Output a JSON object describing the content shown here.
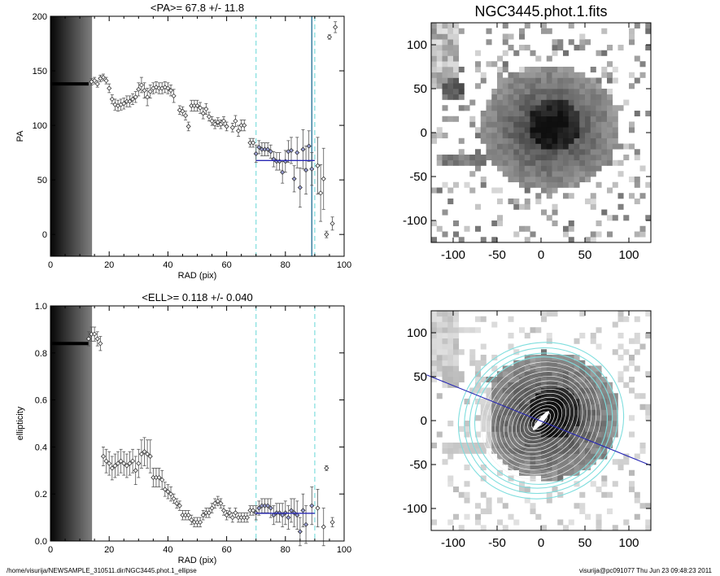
{
  "footer": {
    "path": "/home/visurija/NEWSAMPLE_310511.dir/NGC3445.phot.1_ellipse",
    "user_time": "visurija@pc091077  Thu Jun 23 09:48:23 2011"
  },
  "chart_data": [
    {
      "type": "scatter",
      "title": "<PA>=  67.8 +/-  11.8",
      "xlabel": "RAD (pix)",
      "ylabel": "PA",
      "xlim": [
        0,
        100
      ],
      "ylim": [
        -20,
        200
      ],
      "xticks": [
        0,
        20,
        40,
        60,
        80,
        100
      ],
      "yticks": [
        0,
        50,
        100,
        150,
        200
      ],
      "mean": 67.8,
      "mean_range": [
        70,
        90
      ],
      "vlines_dashed": [
        70,
        90
      ],
      "vline_solid": 89,
      "flat_segment": {
        "x": [
          0,
          13
        ],
        "y": 138
      },
      "points": [
        {
          "x": 14,
          "y": 140,
          "e": 3
        },
        {
          "x": 15,
          "y": 141,
          "e": 3
        },
        {
          "x": 16,
          "y": 138,
          "e": 3
        },
        {
          "x": 17,
          "y": 143,
          "e": 3
        },
        {
          "x": 18,
          "y": 144,
          "e": 3
        },
        {
          "x": 19,
          "y": 141,
          "e": 3
        },
        {
          "x": 20,
          "y": 134,
          "e": 4
        },
        {
          "x": 21,
          "y": 124,
          "e": 4
        },
        {
          "x": 22,
          "y": 119,
          "e": 5
        },
        {
          "x": 23,
          "y": 118,
          "e": 5
        },
        {
          "x": 24,
          "y": 119,
          "e": 5
        },
        {
          "x": 25,
          "y": 120,
          "e": 5
        },
        {
          "x": 26,
          "y": 122,
          "e": 5
        },
        {
          "x": 27,
          "y": 122,
          "e": 5
        },
        {
          "x": 28,
          "y": 124,
          "e": 5
        },
        {
          "x": 29,
          "y": 126,
          "e": 5
        },
        {
          "x": 30,
          "y": 133,
          "e": 6
        },
        {
          "x": 31,
          "y": 137,
          "e": 7
        },
        {
          "x": 32,
          "y": 132,
          "e": 7
        },
        {
          "x": 33,
          "y": 126,
          "e": 8
        },
        {
          "x": 34,
          "y": 131,
          "e": 6
        },
        {
          "x": 35,
          "y": 134,
          "e": 5
        },
        {
          "x": 36,
          "y": 135,
          "e": 5
        },
        {
          "x": 37,
          "y": 134,
          "e": 5
        },
        {
          "x": 38,
          "y": 134,
          "e": 5
        },
        {
          "x": 39,
          "y": 135,
          "e": 5
        },
        {
          "x": 40,
          "y": 134,
          "e": 5
        },
        {
          "x": 41,
          "y": 132,
          "e": 5
        },
        {
          "x": 42,
          "y": 127,
          "e": 6
        },
        {
          "x": 44,
          "y": 114,
          "e": 4
        },
        {
          "x": 45,
          "y": 113,
          "e": 4
        },
        {
          "x": 46,
          "y": 109,
          "e": 4
        },
        {
          "x": 47,
          "y": 99,
          "e": 4
        },
        {
          "x": 48,
          "y": 118,
          "e": 5
        },
        {
          "x": 49,
          "y": 118,
          "e": 5
        },
        {
          "x": 50,
          "y": 118,
          "e": 5
        },
        {
          "x": 51,
          "y": 116,
          "e": 5
        },
        {
          "x": 52,
          "y": 111,
          "e": 5
        },
        {
          "x": 53,
          "y": 115,
          "e": 5
        },
        {
          "x": 54,
          "y": 108,
          "e": 4
        },
        {
          "x": 55,
          "y": 104,
          "e": 4
        },
        {
          "x": 56,
          "y": 101,
          "e": 4
        },
        {
          "x": 57,
          "y": 103,
          "e": 4
        },
        {
          "x": 58,
          "y": 101,
          "e": 4
        },
        {
          "x": 59,
          "y": 104,
          "e": 4
        },
        {
          "x": 60,
          "y": 99,
          "e": 4
        },
        {
          "x": 62,
          "y": 98,
          "e": 4
        },
        {
          "x": 63,
          "y": 104,
          "e": 5
        },
        {
          "x": 64,
          "y": 95,
          "e": 5
        },
        {
          "x": 65,
          "y": 100,
          "e": 5
        },
        {
          "x": 66,
          "y": 100,
          "e": 5
        },
        {
          "x": 68,
          "y": 84,
          "e": 4
        },
        {
          "x": 69,
          "y": 84,
          "e": 4
        },
        {
          "x": 70,
          "y": 74,
          "e": 8
        },
        {
          "x": 71,
          "y": 80,
          "e": 6
        },
        {
          "x": 72,
          "y": 78,
          "e": 6
        },
        {
          "x": 73,
          "y": 78,
          "e": 6
        },
        {
          "x": 74,
          "y": 78,
          "e": 6
        },
        {
          "x": 75,
          "y": 76,
          "e": 6
        },
        {
          "x": 76,
          "y": 69,
          "e": 7
        },
        {
          "x": 77,
          "y": 67,
          "e": 8
        },
        {
          "x": 78,
          "y": 67,
          "e": 8
        },
        {
          "x": 79,
          "y": 57,
          "e": 10
        },
        {
          "x": 80,
          "y": 67,
          "e": 10
        },
        {
          "x": 81,
          "y": 76,
          "e": 10
        },
        {
          "x": 82,
          "y": 77,
          "e": 12
        },
        {
          "x": 83,
          "y": 51,
          "e": 12
        },
        {
          "x": 84,
          "y": 75,
          "e": 14
        },
        {
          "x": 85,
          "y": 43,
          "e": 18
        },
        {
          "x": 86,
          "y": 78,
          "e": 18
        },
        {
          "x": 87,
          "y": 59,
          "e": 22
        },
        {
          "x": 88,
          "y": 81,
          "e": 14
        },
        {
          "x": 89,
          "y": 60,
          "e": 15
        },
        {
          "x": 91,
          "y": 63,
          "e": 26
        },
        {
          "x": 92,
          "y": 38,
          "e": 26
        },
        {
          "x": 93,
          "y": 51,
          "e": 28
        },
        {
          "x": 94,
          "y": 0,
          "e": 3
        },
        {
          "x": 95,
          "y": 181,
          "e": 2
        },
        {
          "x": 96,
          "y": 10,
          "e": 6
        },
        {
          "x": 97,
          "y": 190,
          "e": 5
        }
      ]
    },
    {
      "type": "scatter",
      "title": "<ELL>= 0.118 +/-  0.040",
      "xlabel": "RAD (pix)",
      "ylabel": "ellipticity",
      "xlim": [
        0,
        100
      ],
      "ylim": [
        0,
        1
      ],
      "xticks": [
        0,
        20,
        40,
        60,
        80,
        100
      ],
      "yticks": [
        0.0,
        0.2,
        0.4,
        0.6,
        0.8,
        1.0
      ],
      "mean": 0.118,
      "mean_range": [
        70,
        90
      ],
      "vlines_dashed": [
        70,
        90
      ],
      "flat_segment": {
        "x": [
          0,
          13
        ],
        "y": 0.84
      },
      "points": [
        {
          "x": 13,
          "y": 0.86,
          "e": 0.03
        },
        {
          "x": 14,
          "y": 0.88,
          "e": 0.03
        },
        {
          "x": 15,
          "y": 0.88,
          "e": 0.03
        },
        {
          "x": 16,
          "y": 0.86,
          "e": 0.03
        },
        {
          "x": 17,
          "y": 0.84,
          "e": 0.03
        },
        {
          "x": 18,
          "y": 0.36,
          "e": 0.04
        },
        {
          "x": 19,
          "y": 0.34,
          "e": 0.05
        },
        {
          "x": 20,
          "y": 0.33,
          "e": 0.05
        },
        {
          "x": 21,
          "y": 0.31,
          "e": 0.05
        },
        {
          "x": 22,
          "y": 0.32,
          "e": 0.05
        },
        {
          "x": 23,
          "y": 0.33,
          "e": 0.05
        },
        {
          "x": 24,
          "y": 0.34,
          "e": 0.05
        },
        {
          "x": 25,
          "y": 0.33,
          "e": 0.05
        },
        {
          "x": 26,
          "y": 0.32,
          "e": 0.05
        },
        {
          "x": 27,
          "y": 0.33,
          "e": 0.05
        },
        {
          "x": 28,
          "y": 0.34,
          "e": 0.05
        },
        {
          "x": 29,
          "y": 0.3,
          "e": 0.06
        },
        {
          "x": 30,
          "y": 0.33,
          "e": 0.06
        },
        {
          "x": 31,
          "y": 0.37,
          "e": 0.06
        },
        {
          "x": 32,
          "y": 0.38,
          "e": 0.06
        },
        {
          "x": 33,
          "y": 0.37,
          "e": 0.06
        },
        {
          "x": 34,
          "y": 0.36,
          "e": 0.07
        },
        {
          "x": 35,
          "y": 0.27,
          "e": 0.04
        },
        {
          "x": 36,
          "y": 0.27,
          "e": 0.04
        },
        {
          "x": 37,
          "y": 0.27,
          "e": 0.04
        },
        {
          "x": 38,
          "y": 0.26,
          "e": 0.04
        },
        {
          "x": 39,
          "y": 0.22,
          "e": 0.03
        },
        {
          "x": 40,
          "y": 0.21,
          "e": 0.03
        },
        {
          "x": 41,
          "y": 0.2,
          "e": 0.03
        },
        {
          "x": 42,
          "y": 0.18,
          "e": 0.02
        },
        {
          "x": 43,
          "y": 0.16,
          "e": 0.02
        },
        {
          "x": 44,
          "y": 0.15,
          "e": 0.02
        },
        {
          "x": 45,
          "y": 0.11,
          "e": 0.02
        },
        {
          "x": 46,
          "y": 0.11,
          "e": 0.02
        },
        {
          "x": 47,
          "y": 0.11,
          "e": 0.02
        },
        {
          "x": 48,
          "y": 0.09,
          "e": 0.02
        },
        {
          "x": 49,
          "y": 0.08,
          "e": 0.02
        },
        {
          "x": 50,
          "y": 0.08,
          "e": 0.02
        },
        {
          "x": 51,
          "y": 0.08,
          "e": 0.02
        },
        {
          "x": 52,
          "y": 0.11,
          "e": 0.02
        },
        {
          "x": 53,
          "y": 0.12,
          "e": 0.02
        },
        {
          "x": 54,
          "y": 0.12,
          "e": 0.02
        },
        {
          "x": 55,
          "y": 0.14,
          "e": 0.02
        },
        {
          "x": 56,
          "y": 0.16,
          "e": 0.02
        },
        {
          "x": 57,
          "y": 0.17,
          "e": 0.02
        },
        {
          "x": 58,
          "y": 0.16,
          "e": 0.02
        },
        {
          "x": 59,
          "y": 0.13,
          "e": 0.02
        },
        {
          "x": 60,
          "y": 0.11,
          "e": 0.02
        },
        {
          "x": 61,
          "y": 0.12,
          "e": 0.02
        },
        {
          "x": 62,
          "y": 0.1,
          "e": 0.02
        },
        {
          "x": 63,
          "y": 0.12,
          "e": 0.02
        },
        {
          "x": 64,
          "y": 0.1,
          "e": 0.02
        },
        {
          "x": 65,
          "y": 0.1,
          "e": 0.02
        },
        {
          "x": 66,
          "y": 0.1,
          "e": 0.02
        },
        {
          "x": 67,
          "y": 0.1,
          "e": 0.02
        },
        {
          "x": 68,
          "y": 0.13,
          "e": 0.02
        },
        {
          "x": 69,
          "y": 0.13,
          "e": 0.02
        },
        {
          "x": 70,
          "y": 0.12,
          "e": 0.03
        },
        {
          "x": 71,
          "y": 0.14,
          "e": 0.03
        },
        {
          "x": 72,
          "y": 0.15,
          "e": 0.03
        },
        {
          "x": 73,
          "y": 0.15,
          "e": 0.03
        },
        {
          "x": 74,
          "y": 0.15,
          "e": 0.03
        },
        {
          "x": 75,
          "y": 0.14,
          "e": 0.04
        },
        {
          "x": 76,
          "y": 0.11,
          "e": 0.04
        },
        {
          "x": 77,
          "y": 0.12,
          "e": 0.04
        },
        {
          "x": 78,
          "y": 0.12,
          "e": 0.04
        },
        {
          "x": 79,
          "y": 0.11,
          "e": 0.05
        },
        {
          "x": 80,
          "y": 0.12,
          "e": 0.05
        },
        {
          "x": 81,
          "y": 0.1,
          "e": 0.05
        },
        {
          "x": 82,
          "y": 0.13,
          "e": 0.05
        },
        {
          "x": 83,
          "y": 0.12,
          "e": 0.06
        },
        {
          "x": 84,
          "y": 0.11,
          "e": 0.06
        },
        {
          "x": 85,
          "y": 0.04,
          "e": 0.06
        },
        {
          "x": 86,
          "y": 0.13,
          "e": 0.07
        },
        {
          "x": 87,
          "y": 0.07,
          "e": 0.08
        },
        {
          "x": 89,
          "y": 0.15,
          "e": 0.08
        },
        {
          "x": 91,
          "y": 0.14,
          "e": 0.08
        },
        {
          "x": 93,
          "y": 0.06,
          "e": 0.08
        },
        {
          "x": 94,
          "y": 0.31,
          "e": 0.01
        },
        {
          "x": 96,
          "y": 0.08,
          "e": 0.02
        }
      ]
    }
  ],
  "images": [
    {
      "title": "NGC3445.phot.1.fits",
      "xticks": [
        -100,
        -50,
        0,
        50,
        100
      ],
      "yticks": [
        -100,
        -50,
        0,
        50,
        100
      ],
      "lim": [
        -125,
        125
      ],
      "pa_line": {
        "pa_deg": 67.8
      }
    },
    {
      "title": "",
      "xticks": [
        -100,
        -50,
        0,
        50,
        100
      ],
      "yticks": [
        -100,
        -50,
        0,
        50,
        100
      ],
      "lim": [
        -125,
        125
      ],
      "pa_line": {
        "pa_deg": 67.8
      }
    }
  ],
  "colors": {
    "cyan": "#7fdede",
    "blue": "#2828b4",
    "marker": "#555555"
  }
}
